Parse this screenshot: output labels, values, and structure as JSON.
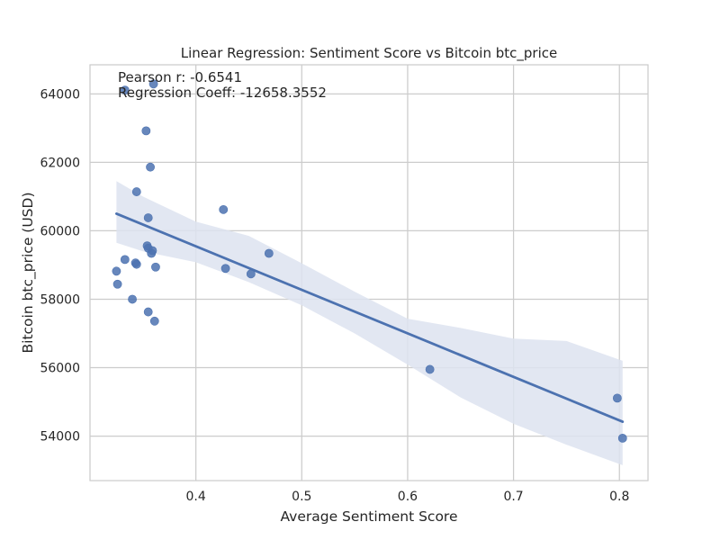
{
  "chart_data": {
    "type": "scatter",
    "title": "Linear Regression: Sentiment Score vs Bitcoin btc_price",
    "xlabel": "Average Sentiment Score",
    "ylabel": "Bitcoin btc_price (USD)",
    "xlim": [
      0.3,
      0.827
    ],
    "ylim": [
      52700,
      64850
    ],
    "xticks": [
      0.4,
      0.5,
      0.6,
      0.7,
      0.8
    ],
    "yticks": [
      54000,
      56000,
      58000,
      60000,
      62000,
      64000
    ],
    "xtick_labels": [
      "0.4",
      "0.5",
      "0.6",
      "0.7",
      "0.8"
    ],
    "ytick_labels": [
      "54000",
      "56000",
      "58000",
      "60000",
      "62000",
      "64000"
    ],
    "grid": true,
    "point_color": "#4c72b0",
    "line_color": "#4c72b0",
    "band_color": "#dde3f0",
    "annotations": [
      "Pearson r: -0.6541",
      "Regression Coeff: -12658.3552"
    ],
    "points": [
      {
        "x": 0.333,
        "y": 64110
      },
      {
        "x": 0.36,
        "y": 64290
      },
      {
        "x": 0.353,
        "y": 62920
      },
      {
        "x": 0.357,
        "y": 61860
      },
      {
        "x": 0.344,
        "y": 61140
      },
      {
        "x": 0.426,
        "y": 60620
      },
      {
        "x": 0.355,
        "y": 60380
      },
      {
        "x": 0.354,
        "y": 59560
      },
      {
        "x": 0.355,
        "y": 59490
      },
      {
        "x": 0.359,
        "y": 59420
      },
      {
        "x": 0.358,
        "y": 59340
      },
      {
        "x": 0.469,
        "y": 59340
      },
      {
        "x": 0.333,
        "y": 59160
      },
      {
        "x": 0.343,
        "y": 59060
      },
      {
        "x": 0.344,
        "y": 59020
      },
      {
        "x": 0.362,
        "y": 58940
      },
      {
        "x": 0.428,
        "y": 58900
      },
      {
        "x": 0.325,
        "y": 58820
      },
      {
        "x": 0.452,
        "y": 58740
      },
      {
        "x": 0.326,
        "y": 58440
      },
      {
        "x": 0.34,
        "y": 58000
      },
      {
        "x": 0.355,
        "y": 57630
      },
      {
        "x": 0.361,
        "y": 57360
      },
      {
        "x": 0.621,
        "y": 55950
      },
      {
        "x": 0.798,
        "y": 55110
      },
      {
        "x": 0.803,
        "y": 53940
      }
    ],
    "regression_line": {
      "x": [
        0.325,
        0.803
      ],
      "y": [
        60500,
        54420
      ]
    },
    "confidence_band": {
      "x": [
        0.325,
        0.35,
        0.4,
        0.45,
        0.5,
        0.55,
        0.6,
        0.65,
        0.7,
        0.75,
        0.803
      ],
      "upper": [
        61450,
        61000,
        60270,
        59850,
        59050,
        58220,
        57430,
        57160,
        56850,
        56780,
        56200
      ],
      "lower": [
        59650,
        59400,
        59080,
        58500,
        57820,
        57000,
        56090,
        55130,
        54360,
        53750,
        53150
      ]
    }
  }
}
